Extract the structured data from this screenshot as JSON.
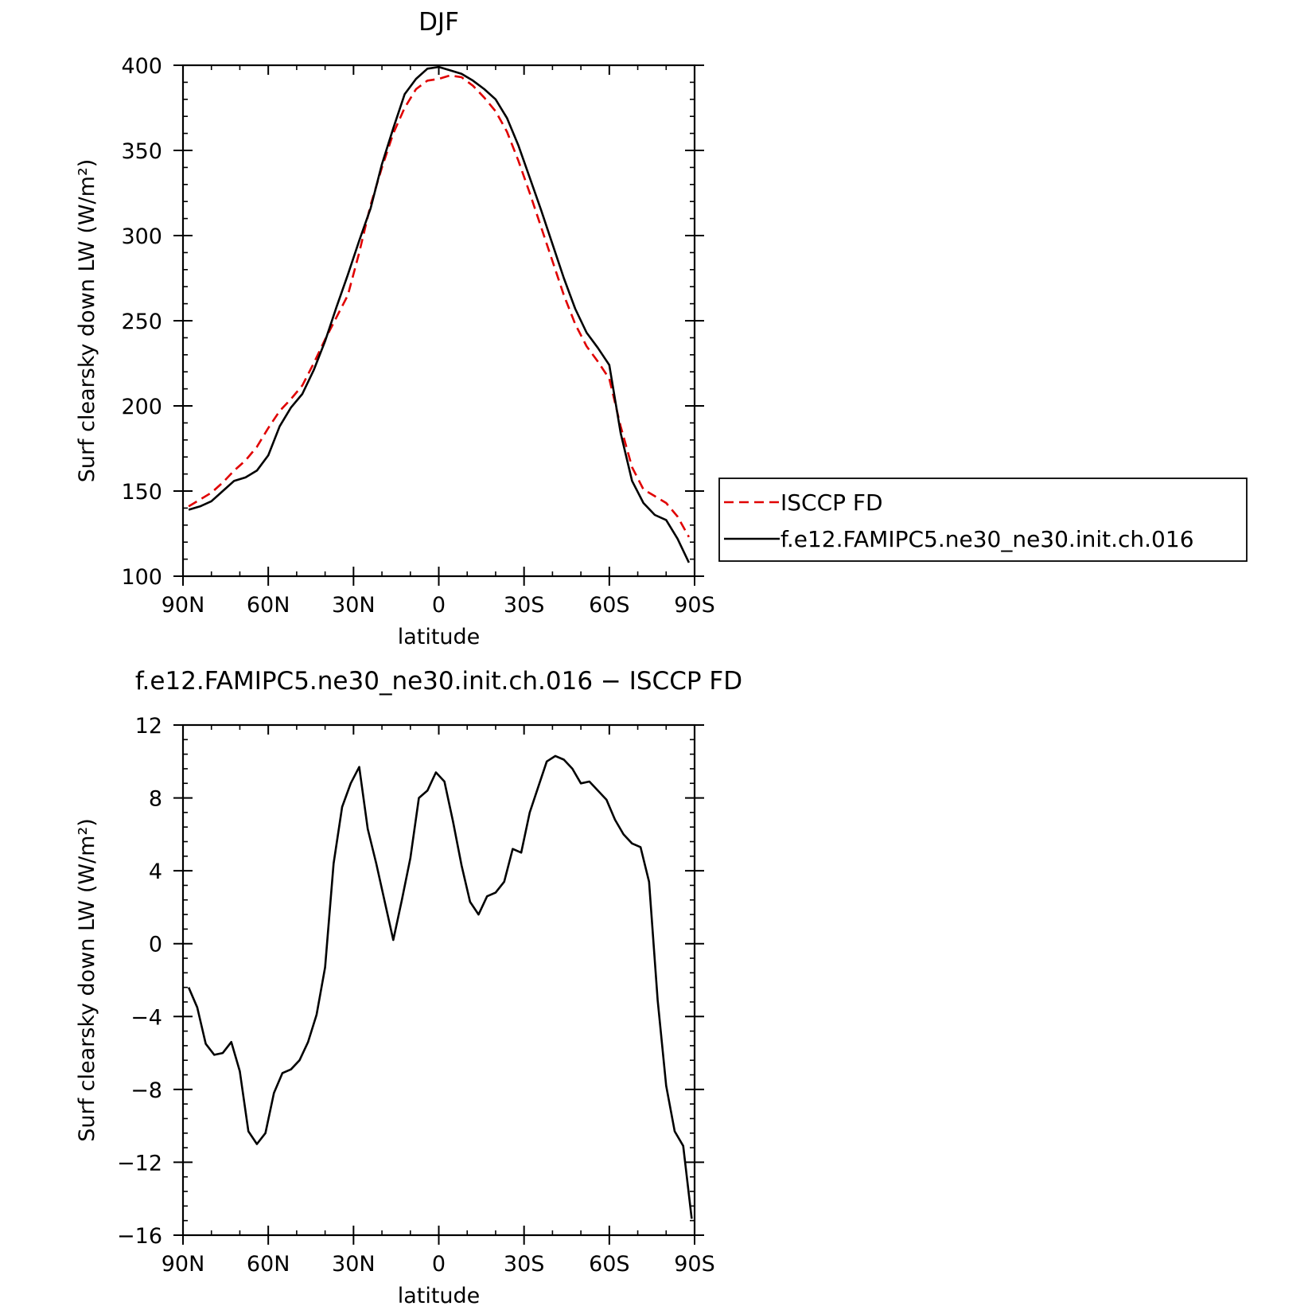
{
  "chart_data": [
    {
      "type": "line",
      "title": "DJF",
      "xlabel": "latitude",
      "ylabel": "Surf clearsky down LW (W/m²)",
      "xlim": [
        90,
        -90
      ],
      "ylim": [
        100,
        400
      ],
      "x_ticks": [
        {
          "value": 90,
          "label": "90N"
        },
        {
          "value": 60,
          "label": "60N"
        },
        {
          "value": 30,
          "label": "30N"
        },
        {
          "value": 0,
          "label": "0"
        },
        {
          "value": -30,
          "label": "30S"
        },
        {
          "value": -60,
          "label": "60S"
        },
        {
          "value": -90,
          "label": "90S"
        }
      ],
      "y_ticks": [
        {
          "value": 100,
          "label": "100"
        },
        {
          "value": 150,
          "label": "150"
        },
        {
          "value": 200,
          "label": "200"
        },
        {
          "value": 250,
          "label": "250"
        },
        {
          "value": 300,
          "label": "300"
        },
        {
          "value": 350,
          "label": "350"
        },
        {
          "value": 400,
          "label": "400"
        }
      ],
      "legend_position": "right",
      "series": [
        {
          "name": "ISCCP FD",
          "color": "#e00000",
          "dash": "dashed",
          "x": [
            88,
            84,
            80,
            76,
            72,
            68,
            64,
            60,
            56,
            52,
            48,
            44,
            40,
            36,
            32,
            28,
            24,
            20,
            16,
            12,
            8,
            4,
            0,
            -4,
            -8,
            -12,
            -16,
            -20,
            -24,
            -28,
            -32,
            -36,
            -40,
            -44,
            -48,
            -52,
            -56,
            -60,
            -64,
            -68,
            -72,
            -76,
            -80,
            -84,
            -88
          ],
          "values": [
            141,
            145,
            149,
            155,
            162,
            168,
            176,
            187,
            197,
            204,
            212,
            225,
            239,
            252,
            265,
            290,
            318,
            340,
            360,
            375,
            386,
            391,
            392,
            394,
            393,
            388,
            381,
            373,
            361,
            344,
            325,
            305,
            285,
            265,
            248,
            235,
            226,
            216,
            188,
            164,
            151,
            147,
            143,
            135,
            123
          ]
        },
        {
          "name": "f.e12.FAMIPC5.ne30_ne30.init.ch.016",
          "color": "#000000",
          "dash": "solid",
          "x": [
            88,
            84,
            80,
            76,
            72,
            68,
            64,
            60,
            56,
            52,
            48,
            44,
            40,
            36,
            32,
            28,
            24,
            20,
            16,
            12,
            8,
            4,
            0,
            -4,
            -8,
            -12,
            -16,
            -20,
            -24,
            -28,
            -32,
            -36,
            -40,
            -44,
            -48,
            -52,
            -56,
            -60,
            -64,
            -68,
            -72,
            -76,
            -80,
            -84,
            -88
          ],
          "values": [
            139,
            141,
            144,
            150,
            156,
            158,
            162,
            171,
            188,
            199,
            207,
            221,
            238,
            258,
            277,
            297,
            316,
            342,
            363,
            383,
            392,
            398,
            399,
            397,
            395,
            391,
            386,
            380,
            369,
            353,
            334,
            315,
            295,
            275,
            257,
            243,
            234,
            224,
            184,
            156,
            143,
            136,
            133,
            122,
            108
          ]
        }
      ]
    },
    {
      "type": "line",
      "title": "f.e12.FAMIPC5.ne30_ne30.init.ch.016 − ISCCP FD",
      "xlabel": "latitude",
      "ylabel": "Surf clearsky down LW (W/m²)",
      "xlim": [
        90,
        -90
      ],
      "ylim": [
        -16,
        12
      ],
      "x_ticks": [
        {
          "value": 90,
          "label": "90N"
        },
        {
          "value": 60,
          "label": "60N"
        },
        {
          "value": 30,
          "label": "30N"
        },
        {
          "value": 0,
          "label": "0"
        },
        {
          "value": -30,
          "label": "30S"
        },
        {
          "value": -60,
          "label": "60S"
        },
        {
          "value": -90,
          "label": "90S"
        }
      ],
      "y_ticks": [
        {
          "value": 12,
          "label": "12"
        },
        {
          "value": 8,
          "label": "8"
        },
        {
          "value": 4,
          "label": "4"
        },
        {
          "value": 0,
          "label": "0"
        },
        {
          "value": -4,
          "label": "−4"
        },
        {
          "value": -8,
          "label": "−8"
        },
        {
          "value": -12,
          "label": "−12"
        },
        {
          "value": -16,
          "label": "−16"
        }
      ],
      "series": [
        {
          "color": "#000000",
          "dash": "solid",
          "x": [
            88,
            85,
            82,
            79,
            76,
            73,
            70,
            67,
            64,
            61,
            58,
            55,
            52,
            49,
            46,
            43,
            40,
            37,
            34,
            31,
            28,
            25,
            22,
            19,
            16,
            13,
            10,
            7,
            4,
            1,
            -2,
            -5,
            -8,
            -11,
            -14,
            -17,
            -20,
            -23,
            -26,
            -29,
            -32,
            -35,
            -38,
            -41,
            -44,
            -47,
            -50,
            -53,
            -56,
            -59,
            -62,
            -65,
            -68,
            -71,
            -74,
            -77,
            -80,
            -83,
            -86,
            -89
          ],
          "values": [
            -2.4,
            -3.5,
            -5.5,
            -6.1,
            -6.0,
            -5.4,
            -7.0,
            -10.3,
            -11.0,
            -10.4,
            -8.2,
            -7.1,
            -6.9,
            -6.4,
            -5.4,
            -3.9,
            -1.3,
            4.4,
            7.5,
            8.8,
            9.7,
            6.3,
            4.4,
            2.3,
            0.2,
            2.4,
            4.7,
            8.0,
            8.4,
            9.4,
            8.9,
            6.7,
            4.3,
            2.3,
            1.6,
            2.6,
            2.8,
            3.4,
            5.2,
            5.0,
            7.2,
            8.6,
            10.0,
            10.3,
            10.1,
            9.6,
            8.8,
            8.9,
            8.4,
            7.9,
            6.8,
            6.0,
            5.5,
            5.3,
            3.4,
            -3.1,
            -7.8,
            -10.3,
            -11.1,
            -15.1
          ]
        }
      ]
    }
  ]
}
